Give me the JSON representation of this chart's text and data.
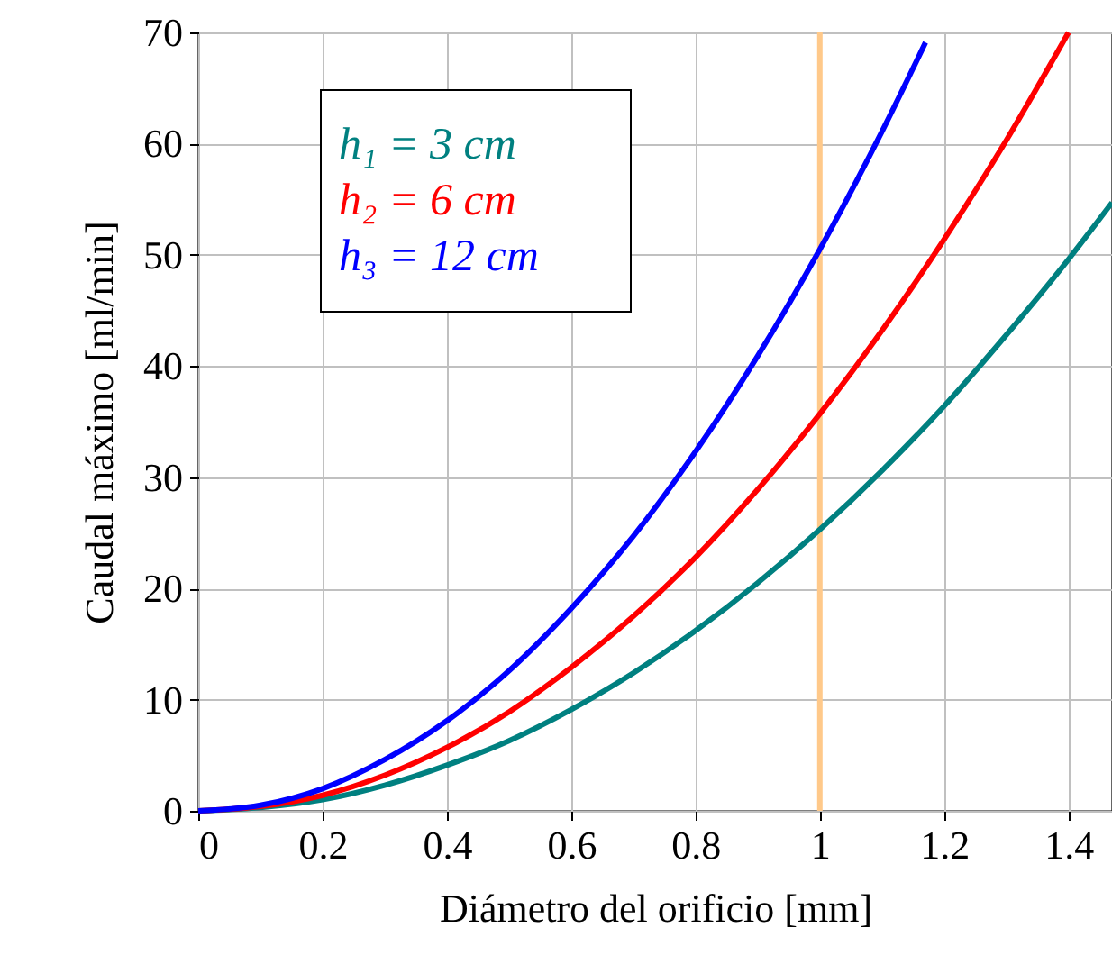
{
  "chart_data": {
    "type": "line",
    "xlabel": "Diámetro del orificio [mm]",
    "ylabel": "Caudal máximo [ml/min]",
    "xlim": [
      0,
      1.47
    ],
    "ylim": [
      0,
      70
    ],
    "xticks": [
      0,
      0.2,
      0.4,
      0.6,
      0.8,
      1,
      1.2,
      1.4
    ],
    "yticks": [
      0,
      10,
      20,
      30,
      40,
      50,
      60,
      70
    ],
    "grid": true,
    "legend": "top left",
    "marker": "none",
    "line_style": "solid",
    "series": [
      {
        "name": "h₁ = 3 cm",
        "color": "#008080",
        "x": [
          0,
          0.1,
          0.2,
          0.3,
          0.4,
          0.5,
          0.6,
          0.7,
          0.8,
          0.9,
          1,
          1.1,
          1.2,
          1.3,
          1.4,
          1.47
        ],
        "values": [
          0,
          0.3,
          1,
          2.3,
          4.1,
          6.3,
          9.1,
          12.4,
          16.2,
          20.5,
          25.3,
          30.6,
          36.4,
          42.8,
          49.6,
          54.7
        ]
      },
      {
        "name": "h₂ = 6 cm",
        "color": "#ff0000",
        "x": [
          0,
          0.1,
          0.2,
          0.3,
          0.4,
          0.5,
          0.6,
          0.7,
          0.8,
          0.9,
          1,
          1.1,
          1.2,
          1.3,
          1.4
        ],
        "values": [
          0,
          0.4,
          1.4,
          3.2,
          5.7,
          8.9,
          12.9,
          17.5,
          22.8,
          28.9,
          35.7,
          43.2,
          51.4,
          60.3,
          70.0
        ]
      },
      {
        "name": "h₃ = 12 cm",
        "color": "#0000ff",
        "x": [
          0,
          0.1,
          0.2,
          0.3,
          0.4,
          0.5,
          0.6,
          0.7,
          0.8,
          0.9,
          1,
          1.1,
          1.17
        ],
        "values": [
          0,
          0.5,
          2,
          4.6,
          8.1,
          12.6,
          18.2,
          24.7,
          32.3,
          40.9,
          50.5,
          61.1,
          69.1
        ]
      }
    ],
    "ref_lines": [
      {
        "axis": "x",
        "value": 1,
        "color": "#ffc98a"
      }
    ]
  }
}
